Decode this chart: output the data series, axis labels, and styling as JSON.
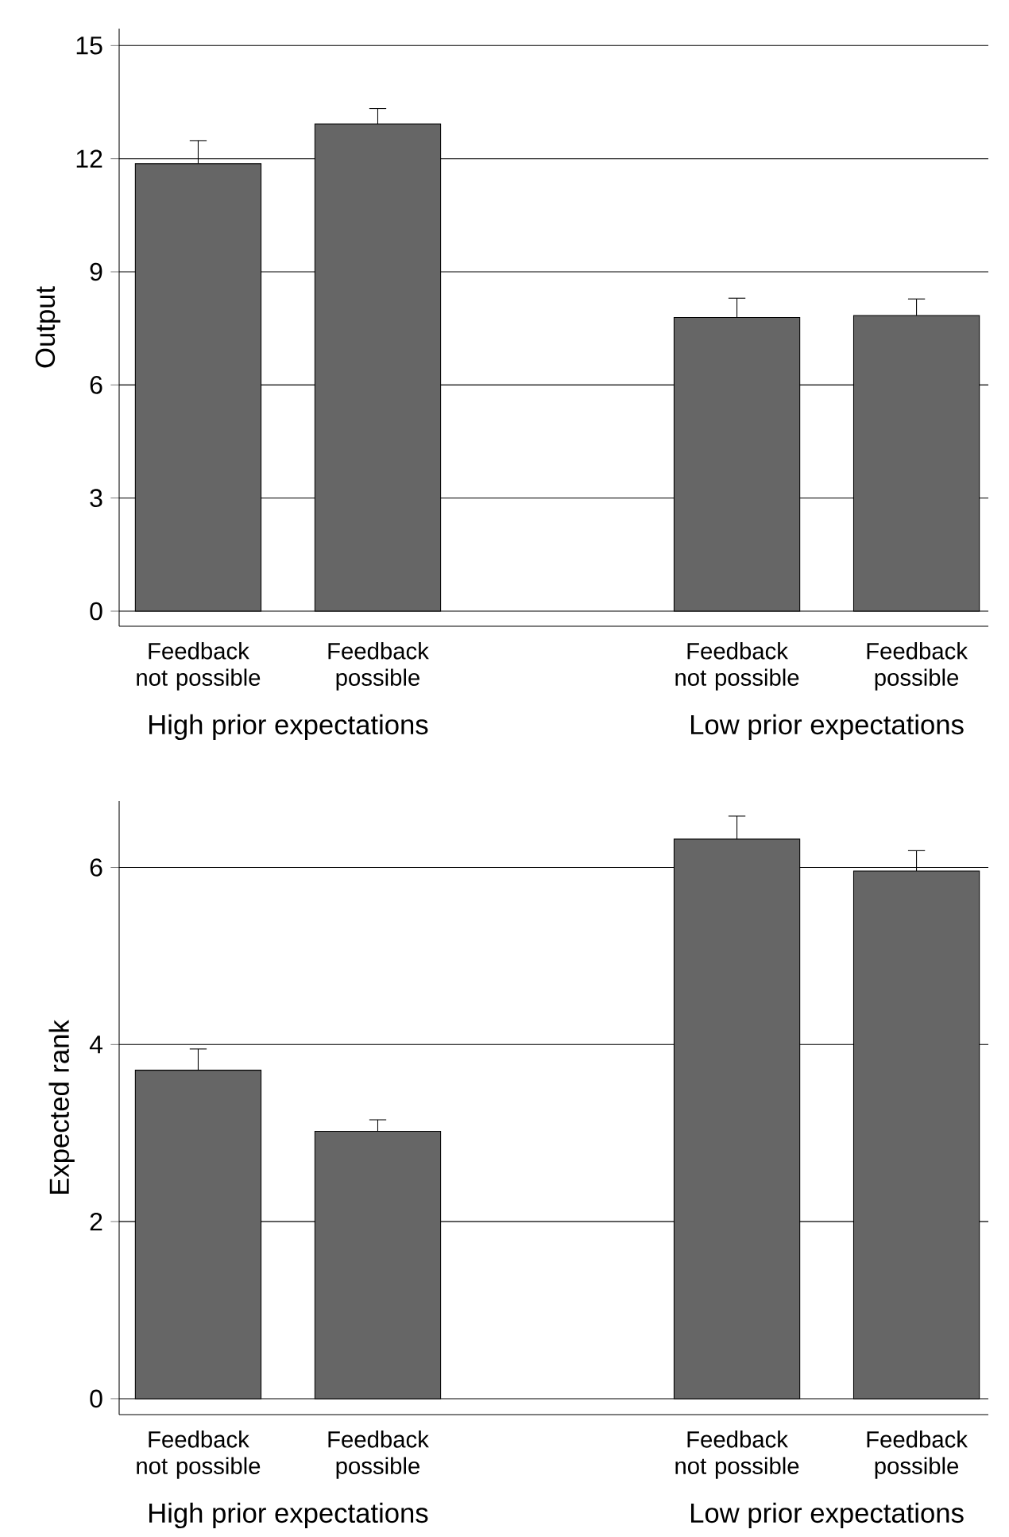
{
  "chart_data": [
    {
      "type": "bar",
      "ylabel": "Output",
      "categories": [
        "Feedback not possible",
        "Feedback possible",
        null,
        "Feedback not possible",
        "Feedback possible"
      ],
      "values": [
        11.87,
        12.92,
        null,
        7.79,
        7.84
      ],
      "color": "#666666",
      "errors": [
        [
          11.87,
          12.48
        ],
        [
          12.92,
          13.33
        ],
        null,
        [
          7.79,
          8.3
        ],
        [
          7.84,
          8.28
        ]
      ],
      "ylim": [
        -0.4,
        15.45
      ],
      "yticks": [
        0,
        3,
        6,
        9,
        12,
        15
      ],
      "grid": "y",
      "annotations": [
        "High prior expectations",
        "Low prior expectations"
      ]
    },
    {
      "type": "bar",
      "ylabel": "Expected rank",
      "categories": [
        "Feedback not possible",
        "Feedback possible",
        null,
        "Feedback not possible",
        "Feedback possible"
      ],
      "values": [
        3.71,
        3.02,
        null,
        6.32,
        5.96
      ],
      "color": "#666666",
      "errors": [
        [
          3.71,
          3.95
        ],
        [
          3.02,
          3.15
        ],
        null,
        [
          6.32,
          6.58
        ],
        [
          5.96,
          6.19
        ]
      ],
      "ylim": [
        -0.18,
        6.75
      ],
      "yticks": [
        0,
        2,
        4,
        6
      ],
      "grid": "y",
      "annotations": [
        "High prior expectations",
        "Low prior expectations"
      ]
    }
  ]
}
